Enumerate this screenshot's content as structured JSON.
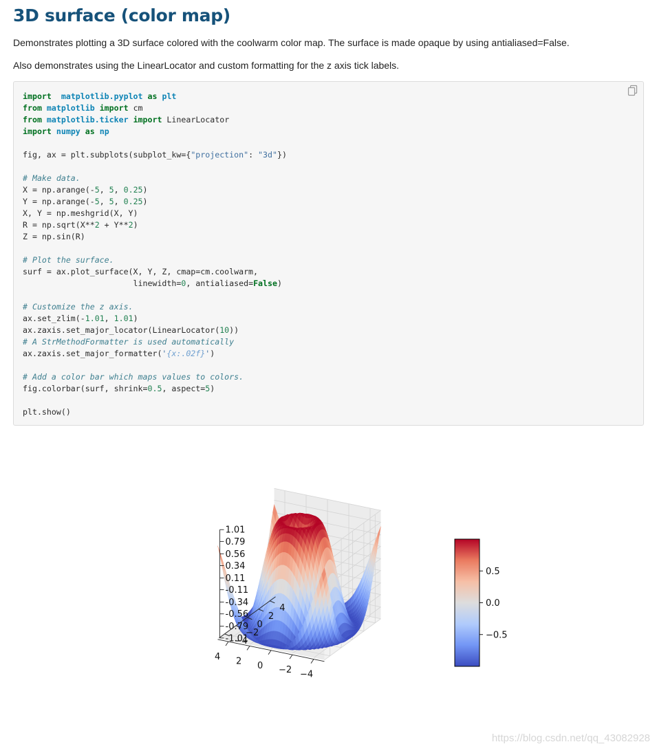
{
  "page": {
    "title": "3D surface (color map)",
    "description_1": "Demonstrates plotting a 3D surface colored with the coolwarm color map. The surface is made opaque by using antialiased=False.",
    "description_2": "Also demonstrates using the LinearLocator and custom formatting for the z axis tick labels.",
    "copy_icon": "copy-icon"
  },
  "code_lines": [
    [
      [
        "kw",
        "import"
      ],
      [
        "",
        "  "
      ],
      [
        "mod",
        "matplotlib.pyplot"
      ],
      [
        "",
        " "
      ],
      [
        "kw",
        "as"
      ],
      [
        "",
        " "
      ],
      [
        "mod",
        "plt"
      ]
    ],
    [
      [
        "kw",
        "from"
      ],
      [
        "",
        " "
      ],
      [
        "mod",
        "matplotlib"
      ],
      [
        "",
        " "
      ],
      [
        "kw",
        "import"
      ],
      [
        "",
        " cm"
      ]
    ],
    [
      [
        "kw",
        "from"
      ],
      [
        "",
        " "
      ],
      [
        "mod",
        "matplotlib.ticker"
      ],
      [
        "",
        " "
      ],
      [
        "kw",
        "import"
      ],
      [
        "",
        " LinearLocator"
      ]
    ],
    [
      [
        "kw",
        "import"
      ],
      [
        "",
        " "
      ],
      [
        "mod",
        "numpy"
      ],
      [
        "",
        " "
      ],
      [
        "kw",
        "as"
      ],
      [
        "",
        " "
      ],
      [
        "mod",
        "np"
      ]
    ],
    [],
    [
      [
        "",
        "fig, ax = plt.subplots(subplot_kw={"
      ],
      [
        "str",
        "\"projection\""
      ],
      [
        "",
        ": "
      ],
      [
        "str",
        "\"3d\""
      ],
      [
        "",
        "})"
      ]
    ],
    [],
    [
      [
        "com",
        "# Make data."
      ]
    ],
    [
      [
        "",
        "X = np.arange(-"
      ],
      [
        "num",
        "5"
      ],
      [
        "",
        ", "
      ],
      [
        "num",
        "5"
      ],
      [
        "",
        ", "
      ],
      [
        "num",
        "0.25"
      ],
      [
        "",
        ")"
      ]
    ],
    [
      [
        "",
        "Y = np.arange(-"
      ],
      [
        "num",
        "5"
      ],
      [
        "",
        ", "
      ],
      [
        "num",
        "5"
      ],
      [
        "",
        ", "
      ],
      [
        "num",
        "0.25"
      ],
      [
        "",
        ")"
      ]
    ],
    [
      [
        "",
        "X, Y = np.meshgrid(X, Y)"
      ]
    ],
    [
      [
        "",
        "R = np.sqrt(X**"
      ],
      [
        "num",
        "2"
      ],
      [
        "",
        " + Y**"
      ],
      [
        "num",
        "2"
      ],
      [
        "",
        ")"
      ]
    ],
    [
      [
        "",
        "Z = np.sin(R)"
      ]
    ],
    [],
    [
      [
        "com",
        "# Plot the surface."
      ]
    ],
    [
      [
        "",
        "surf = ax.plot_surface(X, Y, Z, cmap=cm.coolwarm,"
      ]
    ],
    [
      [
        "",
        "                       linewidth="
      ],
      [
        "num",
        "0"
      ],
      [
        "",
        ", antialiased="
      ],
      [
        "kw",
        "False"
      ],
      [
        "",
        ")"
      ]
    ],
    [],
    [
      [
        "com",
        "# Customize the z axis."
      ]
    ],
    [
      [
        "",
        "ax.set_zlim(-"
      ],
      [
        "num",
        "1.01"
      ],
      [
        "",
        ", "
      ],
      [
        "num",
        "1.01"
      ],
      [
        "",
        ")"
      ]
    ],
    [
      [
        "",
        "ax.zaxis.set_major_locator(LinearLocator("
      ],
      [
        "num",
        "10"
      ],
      [
        "",
        "))"
      ]
    ],
    [
      [
        "com",
        "# A StrMethodFormatter is used automatically"
      ]
    ],
    [
      [
        "",
        "ax.zaxis.set_major_formatter("
      ],
      [
        "str",
        "'"
      ],
      [
        "fmt",
        "{x:.02f}"
      ],
      [
        "str",
        "'"
      ],
      [
        "",
        ")"
      ]
    ],
    [],
    [
      [
        "com",
        "# Add a color bar which maps values to colors."
      ]
    ],
    [
      [
        "",
        "fig.colorbar(surf, shrink="
      ],
      [
        "num",
        "0.5"
      ],
      [
        "",
        ", aspect="
      ],
      [
        "num",
        "5"
      ],
      [
        "",
        ")"
      ]
    ],
    [],
    [
      [
        "",
        "plt.show()"
      ]
    ]
  ],
  "chart_data": {
    "type": "surface3d",
    "function": "Z = sin(sqrt(X^2 + Y^2))",
    "colormap": "coolwarm",
    "x_range": [
      -5,
      5
    ],
    "y_range": [
      -5,
      5
    ],
    "step": 0.25,
    "zlim": [
      -1.01,
      1.01
    ],
    "x_ticks": [
      "−4",
      "−2",
      "0",
      "2",
      "4"
    ],
    "y_ticks": [
      "−4",
      "−2",
      "0",
      "2",
      "4"
    ],
    "z_ticks": [
      "-1.01",
      "-0.79",
      "-0.56",
      "-0.34",
      "-0.11",
      "0.11",
      "0.34",
      "0.56",
      "0.79",
      "1.01"
    ],
    "colorbar": {
      "range": [
        -1,
        1
      ],
      "ticks": [
        {
          "value": 0.5,
          "label": "0.5"
        },
        {
          "value": 0.0,
          "label": "0.0"
        },
        {
          "value": -0.5,
          "label": "−0.5"
        }
      ],
      "colors": [
        "#3b4cc0",
        "#7396f5",
        "#b0cbfc",
        "#dddddd",
        "#f6bfa6",
        "#ea7b60",
        "#b40426"
      ]
    },
    "grid": true
  },
  "watermark": "https://blog.csdn.net/qq_43082928"
}
